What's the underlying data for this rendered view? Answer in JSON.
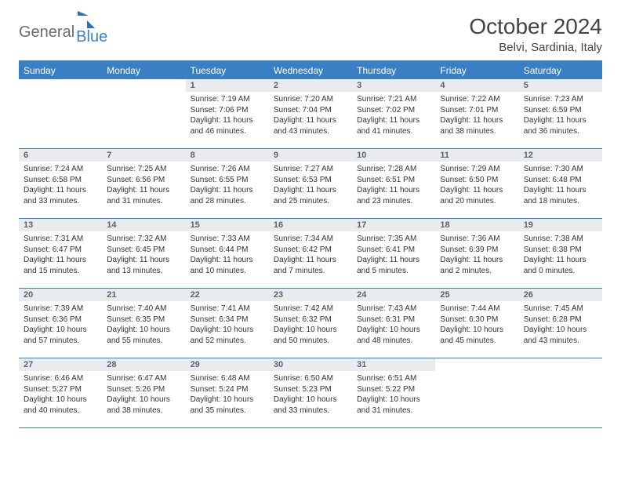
{
  "logo": {
    "part1": "General",
    "part2": "Blue"
  },
  "title": "October 2024",
  "location": "Belvi, Sardinia, Italy",
  "colors": {
    "header_bg": "#3a7fc4",
    "header_text": "#ffffff",
    "daynum_bg": "#e9ecef",
    "daynum_text": "#5c6268",
    "body_text": "#333333",
    "rule": "#3a7fc4",
    "logo_gray": "#6b6b6b",
    "logo_blue": "#3d7fc4"
  },
  "weekdays": [
    "Sunday",
    "Monday",
    "Tuesday",
    "Wednesday",
    "Thursday",
    "Friday",
    "Saturday"
  ],
  "weeks": [
    [
      null,
      null,
      {
        "n": "1",
        "sr": "7:19 AM",
        "ss": "7:06 PM",
        "dl": "11 hours and 46 minutes."
      },
      {
        "n": "2",
        "sr": "7:20 AM",
        "ss": "7:04 PM",
        "dl": "11 hours and 43 minutes."
      },
      {
        "n": "3",
        "sr": "7:21 AM",
        "ss": "7:02 PM",
        "dl": "11 hours and 41 minutes."
      },
      {
        "n": "4",
        "sr": "7:22 AM",
        "ss": "7:01 PM",
        "dl": "11 hours and 38 minutes."
      },
      {
        "n": "5",
        "sr": "7:23 AM",
        "ss": "6:59 PM",
        "dl": "11 hours and 36 minutes."
      }
    ],
    [
      {
        "n": "6",
        "sr": "7:24 AM",
        "ss": "6:58 PM",
        "dl": "11 hours and 33 minutes."
      },
      {
        "n": "7",
        "sr": "7:25 AM",
        "ss": "6:56 PM",
        "dl": "11 hours and 31 minutes."
      },
      {
        "n": "8",
        "sr": "7:26 AM",
        "ss": "6:55 PM",
        "dl": "11 hours and 28 minutes."
      },
      {
        "n": "9",
        "sr": "7:27 AM",
        "ss": "6:53 PM",
        "dl": "11 hours and 25 minutes."
      },
      {
        "n": "10",
        "sr": "7:28 AM",
        "ss": "6:51 PM",
        "dl": "11 hours and 23 minutes."
      },
      {
        "n": "11",
        "sr": "7:29 AM",
        "ss": "6:50 PM",
        "dl": "11 hours and 20 minutes."
      },
      {
        "n": "12",
        "sr": "7:30 AM",
        "ss": "6:48 PM",
        "dl": "11 hours and 18 minutes."
      }
    ],
    [
      {
        "n": "13",
        "sr": "7:31 AM",
        "ss": "6:47 PM",
        "dl": "11 hours and 15 minutes."
      },
      {
        "n": "14",
        "sr": "7:32 AM",
        "ss": "6:45 PM",
        "dl": "11 hours and 13 minutes."
      },
      {
        "n": "15",
        "sr": "7:33 AM",
        "ss": "6:44 PM",
        "dl": "11 hours and 10 minutes."
      },
      {
        "n": "16",
        "sr": "7:34 AM",
        "ss": "6:42 PM",
        "dl": "11 hours and 7 minutes."
      },
      {
        "n": "17",
        "sr": "7:35 AM",
        "ss": "6:41 PM",
        "dl": "11 hours and 5 minutes."
      },
      {
        "n": "18",
        "sr": "7:36 AM",
        "ss": "6:39 PM",
        "dl": "11 hours and 2 minutes."
      },
      {
        "n": "19",
        "sr": "7:38 AM",
        "ss": "6:38 PM",
        "dl": "11 hours and 0 minutes."
      }
    ],
    [
      {
        "n": "20",
        "sr": "7:39 AM",
        "ss": "6:36 PM",
        "dl": "10 hours and 57 minutes."
      },
      {
        "n": "21",
        "sr": "7:40 AM",
        "ss": "6:35 PM",
        "dl": "10 hours and 55 minutes."
      },
      {
        "n": "22",
        "sr": "7:41 AM",
        "ss": "6:34 PM",
        "dl": "10 hours and 52 minutes."
      },
      {
        "n": "23",
        "sr": "7:42 AM",
        "ss": "6:32 PM",
        "dl": "10 hours and 50 minutes."
      },
      {
        "n": "24",
        "sr": "7:43 AM",
        "ss": "6:31 PM",
        "dl": "10 hours and 48 minutes."
      },
      {
        "n": "25",
        "sr": "7:44 AM",
        "ss": "6:30 PM",
        "dl": "10 hours and 45 minutes."
      },
      {
        "n": "26",
        "sr": "7:45 AM",
        "ss": "6:28 PM",
        "dl": "10 hours and 43 minutes."
      }
    ],
    [
      {
        "n": "27",
        "sr": "6:46 AM",
        "ss": "5:27 PM",
        "dl": "10 hours and 40 minutes."
      },
      {
        "n": "28",
        "sr": "6:47 AM",
        "ss": "5:26 PM",
        "dl": "10 hours and 38 minutes."
      },
      {
        "n": "29",
        "sr": "6:48 AM",
        "ss": "5:24 PM",
        "dl": "10 hours and 35 minutes."
      },
      {
        "n": "30",
        "sr": "6:50 AM",
        "ss": "5:23 PM",
        "dl": "10 hours and 33 minutes."
      },
      {
        "n": "31",
        "sr": "6:51 AM",
        "ss": "5:22 PM",
        "dl": "10 hours and 31 minutes."
      },
      null,
      null
    ]
  ],
  "labels": {
    "sunrise": "Sunrise:",
    "sunset": "Sunset:",
    "daylight": "Daylight:"
  }
}
